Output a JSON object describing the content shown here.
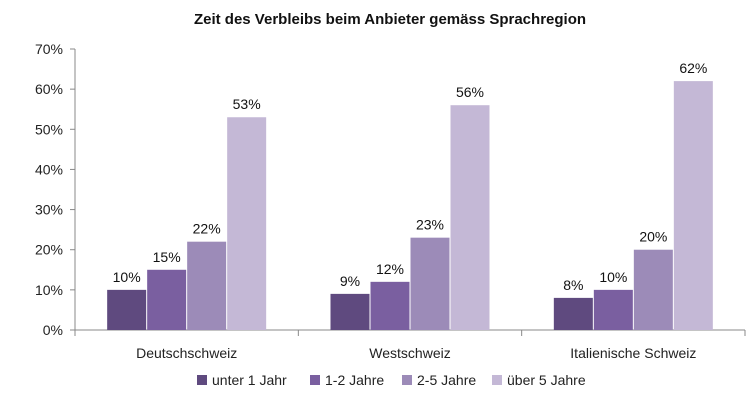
{
  "chart_data": {
    "type": "bar",
    "title": "Zeit des Verbleibs beim Anbieter gemäss Sprachregion",
    "categories": [
      "Deutschschweiz",
      "Westschweiz",
      "Italienische Schweiz"
    ],
    "series": [
      {
        "name": "unter 1 Jahr",
        "color": "#5f4a7f",
        "values": [
          10,
          9,
          8
        ],
        "labels": [
          "10%",
          "9%",
          "8%"
        ]
      },
      {
        "name": "1-2 Jahre",
        "color": "#7a5fa0",
        "values": [
          15,
          12,
          10
        ],
        "labels": [
          "15%",
          "12%",
          "10%"
        ]
      },
      {
        "name": "2-5 Jahre",
        "color": "#9c8bb8",
        "values": [
          22,
          23,
          20
        ],
        "labels": [
          "22%",
          "23%",
          "20%"
        ]
      },
      {
        "name": "über 5 Jahre",
        "color": "#c4b8d6",
        "values": [
          53,
          56,
          62
        ],
        "labels": [
          "53%",
          "56%",
          "62%"
        ]
      }
    ],
    "ylim": [
      0,
      70
    ],
    "yticks": [
      "0%",
      "10%",
      "20%",
      "30%",
      "40%",
      "50%",
      "60%",
      "70%"
    ],
    "grid": false,
    "legend": "bottom"
  }
}
